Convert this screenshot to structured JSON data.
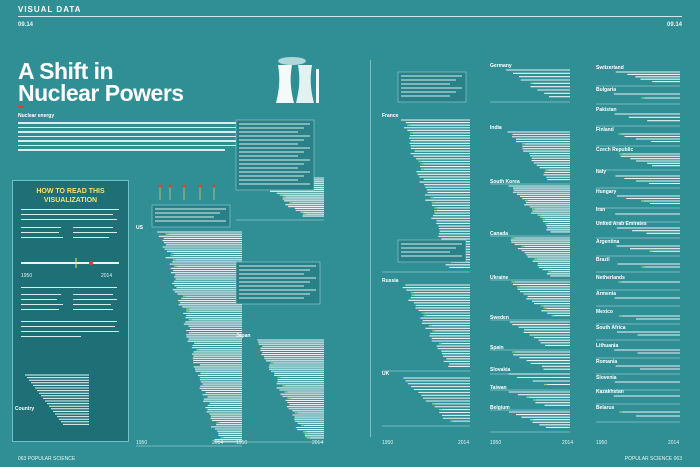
{
  "header": {
    "section": "VISUAL DATA",
    "page_left": "09.14",
    "page_right": "09.14"
  },
  "title": "A Shift in Nuclear Powers",
  "intro": {
    "lead": "Nuclear energy"
  },
  "howto": {
    "title": "HOW TO READ THIS VISUALIZATION",
    "year_start": "1950",
    "year_end": "2014",
    "marker_label": "Country"
  },
  "axis": {
    "start": "1950",
    "end": "2014"
  },
  "footer": {
    "left": "063 POPULAR SCIENCE",
    "right": "POPULAR SCIENCE 063"
  },
  "colors": {
    "bg": "#2f8f95",
    "reactor": "#e9f6f6",
    "highlight": "#f7e36a",
    "accent": "#7fe07a",
    "marker": "#e63b2e"
  },
  "chart_data": [
    {
      "type": "bar",
      "name": "US",
      "reactors": 99
    },
    {
      "type": "bar",
      "name": "China",
      "reactors": 21
    },
    {
      "type": "bar",
      "name": "Japan",
      "reactors": 48
    },
    {
      "type": "bar",
      "name": "France",
      "reactors": 58
    },
    {
      "type": "bar",
      "name": "Russia",
      "reactors": 33
    },
    {
      "type": "bar",
      "name": "UK",
      "reactors": 16
    },
    {
      "type": "bar",
      "name": "Germany",
      "reactors": 9
    },
    {
      "type": "bar",
      "name": "India",
      "reactors": 21
    },
    {
      "type": "bar",
      "name": "South Korea",
      "reactors": 23
    },
    {
      "type": "bar",
      "name": "Canada",
      "reactors": 19
    },
    {
      "type": "bar",
      "name": "Ukraine",
      "reactors": 15
    },
    {
      "type": "bar",
      "name": "Sweden",
      "reactors": 10
    },
    {
      "type": "bar",
      "name": "Spain",
      "reactors": 7
    },
    {
      "type": "bar",
      "name": "Slovakia",
      "reactors": 4
    },
    {
      "type": "bar",
      "name": "Taiwan",
      "reactors": 6
    },
    {
      "type": "bar",
      "name": "Belgium",
      "reactors": 7
    },
    {
      "type": "bar",
      "name": "Switzerland",
      "reactors": 5
    },
    {
      "type": "bar",
      "name": "Bulgaria",
      "reactors": 2
    },
    {
      "type": "bar",
      "name": "Pakistan",
      "reactors": 3
    },
    {
      "type": "bar",
      "name": "Finland",
      "reactors": 4
    },
    {
      "type": "bar",
      "name": "Czech Republic",
      "reactors": 6
    },
    {
      "type": "bar",
      "name": "Italy",
      "reactors": 4
    },
    {
      "type": "bar",
      "name": "Hungary",
      "reactors": 4
    },
    {
      "type": "bar",
      "name": "Iran",
      "reactors": 1
    },
    {
      "type": "bar",
      "name": "United Arab Emirates",
      "reactors": 3
    },
    {
      "type": "bar",
      "name": "Argentina",
      "reactors": 3
    },
    {
      "type": "bar",
      "name": "Brazil",
      "reactors": 2
    },
    {
      "type": "bar",
      "name": "Netherlands",
      "reactors": 1
    },
    {
      "type": "bar",
      "name": "Armenia",
      "reactors": 1
    },
    {
      "type": "bar",
      "name": "Mexico",
      "reactors": 2
    },
    {
      "type": "bar",
      "name": "South Africa",
      "reactors": 2
    },
    {
      "type": "bar",
      "name": "Lithuania",
      "reactors": 2
    },
    {
      "type": "bar",
      "name": "Romania",
      "reactors": 2
    },
    {
      "type": "bar",
      "name": "Slovenia",
      "reactors": 1
    },
    {
      "type": "bar",
      "name": "Kazakhstan",
      "reactors": 1
    },
    {
      "type": "bar",
      "name": "Belarus",
      "reactors": 2
    }
  ]
}
